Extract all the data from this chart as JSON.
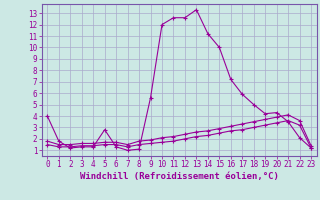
{
  "xlabel": "Windchill (Refroidissement éolien,°C)",
  "background_color": "#cce8e4",
  "grid_color": "#aaaacc",
  "line_color": "#990099",
  "spine_color": "#7755aa",
  "xlim": [
    -0.5,
    23.5
  ],
  "ylim": [
    0.5,
    13.8
  ],
  "xticks": [
    0,
    1,
    2,
    3,
    4,
    5,
    6,
    7,
    8,
    9,
    10,
    11,
    12,
    13,
    14,
    15,
    16,
    17,
    18,
    19,
    20,
    21,
    22,
    23
  ],
  "yticks": [
    1,
    2,
    3,
    4,
    5,
    6,
    7,
    8,
    9,
    10,
    11,
    12,
    13
  ],
  "series1_x": [
    0,
    1,
    2,
    3,
    4,
    5,
    6,
    7,
    8,
    9,
    10,
    11,
    12,
    13,
    14,
    15,
    16,
    17,
    18,
    19,
    20,
    21,
    22,
    23
  ],
  "series1_y": [
    4.0,
    1.8,
    1.2,
    1.3,
    1.3,
    2.8,
    1.3,
    1.0,
    1.1,
    5.6,
    12.0,
    12.6,
    12.6,
    13.3,
    11.2,
    10.0,
    7.2,
    5.9,
    5.0,
    4.2,
    4.3,
    3.5,
    2.1,
    1.2
  ],
  "series2_x": [
    0,
    1,
    2,
    3,
    4,
    5,
    6,
    7,
    8,
    9,
    10,
    11,
    12,
    13,
    14,
    15,
    16,
    17,
    18,
    19,
    20,
    21,
    22,
    23
  ],
  "series2_y": [
    1.8,
    1.5,
    1.5,
    1.6,
    1.6,
    1.7,
    1.7,
    1.5,
    1.8,
    1.9,
    2.1,
    2.2,
    2.4,
    2.6,
    2.7,
    2.9,
    3.1,
    3.3,
    3.5,
    3.7,
    3.9,
    4.1,
    3.6,
    1.4
  ],
  "series3_x": [
    0,
    1,
    2,
    3,
    4,
    5,
    6,
    7,
    8,
    9,
    10,
    11,
    12,
    13,
    14,
    15,
    16,
    17,
    18,
    19,
    20,
    21,
    22,
    23
  ],
  "series3_y": [
    1.5,
    1.3,
    1.3,
    1.4,
    1.4,
    1.5,
    1.5,
    1.3,
    1.5,
    1.6,
    1.7,
    1.8,
    2.0,
    2.2,
    2.3,
    2.5,
    2.7,
    2.8,
    3.0,
    3.2,
    3.4,
    3.6,
    3.2,
    1.2
  ],
  "xlabel_fontsize": 6.5,
  "tick_fontsize": 5.5
}
